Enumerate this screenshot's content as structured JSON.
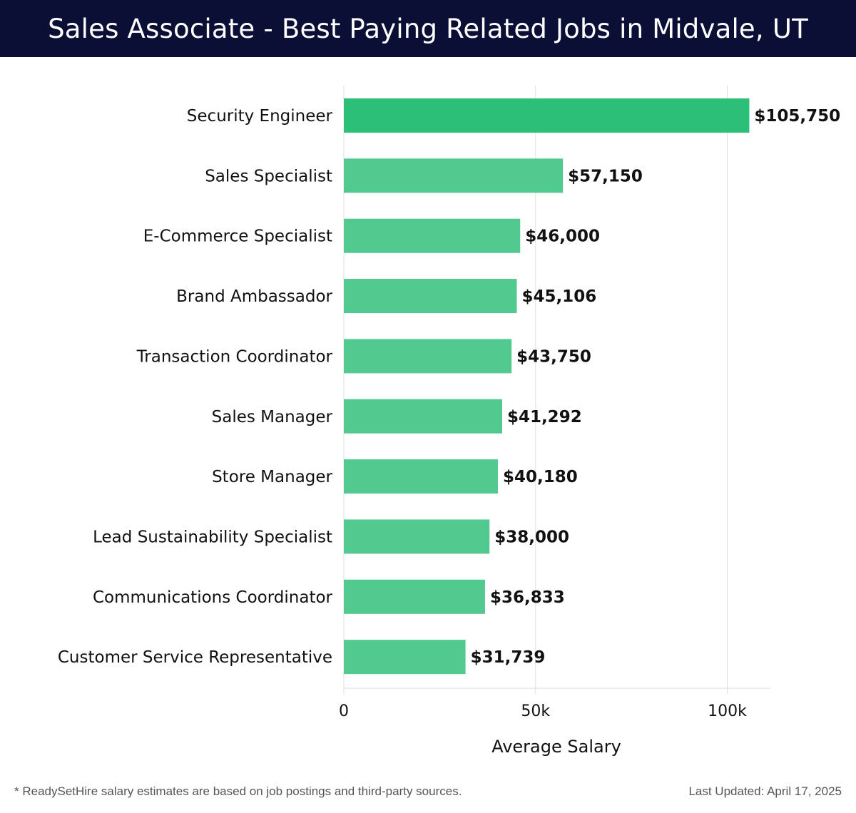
{
  "header": {
    "title": "Sales Associate - Best Paying Related Jobs in Midvale, UT"
  },
  "chart_data": {
    "type": "bar",
    "orientation": "horizontal",
    "categories": [
      "Security Engineer",
      "Sales Specialist",
      "E-Commerce Specialist",
      "Brand Ambassador",
      "Transaction Coordinator",
      "Sales Manager",
      "Store Manager",
      "Lead Sustainability Specialist",
      "Communications Coordinator",
      "Customer Service Representative"
    ],
    "values": [
      105750,
      57150,
      46000,
      45106,
      43750,
      41292,
      40180,
      38000,
      36833,
      31739
    ],
    "value_labels": [
      "$105,750",
      "$57,150",
      "$46,000",
      "$45,106",
      "$43,750",
      "$41,292",
      "$40,180",
      "$38,000",
      "$36,833",
      "$31,739"
    ],
    "xlabel": "Average Salary",
    "ylabel": "",
    "xlim": [
      0,
      111000
    ],
    "x_ticks": [
      0,
      50000,
      100000
    ],
    "x_tick_labels": [
      "0",
      "50k",
      "100k"
    ],
    "grid": "vertical",
    "colors": {
      "top_bar": "#2bbf77",
      "bar": "#52c98e",
      "grid": "#e0e0e0"
    }
  },
  "footer": {
    "note": "* ReadySetHire salary estimates are based on job postings and third-party sources.",
    "updated": "Last Updated: April 17, 2025"
  }
}
